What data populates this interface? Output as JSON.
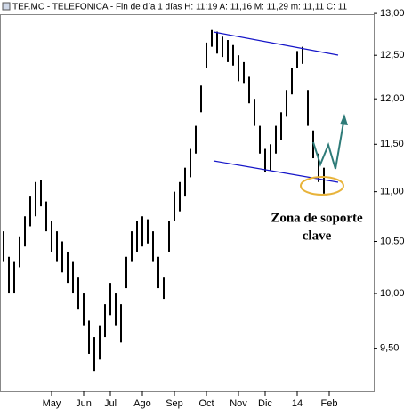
{
  "chart_data": {
    "type": "ohlc",
    "title": "TEF.MC - TELEFONICA - Fin de día 1 días H: 11:19 A: 11,16 M: 11,29 m: 11,11 C: 11",
    "log_scale": true,
    "color": "#000000",
    "xlim": [
      0,
      70
    ],
    "ylim": [
      9.14,
      13.11
    ],
    "yticks": [
      {
        "value": 9.5,
        "label": "9,50"
      },
      {
        "value": 10,
        "label": "10,00"
      },
      {
        "value": 10.5,
        "label": "10,50"
      },
      {
        "value": 11,
        "label": "11,00"
      },
      {
        "value": 11.5,
        "label": "11,50"
      },
      {
        "value": 12,
        "label": "12,00"
      },
      {
        "value": 12.5,
        "label": "12,50"
      },
      {
        "value": 13,
        "label": "13,00"
      }
    ],
    "xticks": [
      {
        "value": 9,
        "label": "May"
      },
      {
        "value": 15,
        "label": "Jun"
      },
      {
        "value": 20,
        "label": "Jul"
      },
      {
        "value": 26,
        "label": "Ago"
      },
      {
        "value": 32,
        "label": "Sep"
      },
      {
        "value": 38,
        "label": "Oct"
      },
      {
        "value": 44,
        "label": "Nov"
      },
      {
        "value": 49,
        "label": "Dic"
      },
      {
        "value": 55,
        "label": "14"
      },
      {
        "value": 61,
        "label": "Feb"
      }
    ],
    "high": [
      10.6,
      10.35,
      10.3,
      10.55,
      10.75,
      10.95,
      11.1,
      11.12,
      10.9,
      10.7,
      10.6,
      10.5,
      10.4,
      10.3,
      10.15,
      10.0,
      9.75,
      9.6,
      9.7,
      9.9,
      10.1,
      10.0,
      9.9,
      10.35,
      10.6,
      10.7,
      10.75,
      10.72,
      10.6,
      10.35,
      10.15,
      10.7,
      11.0,
      11.1,
      11.25,
      11.45,
      11.7,
      12.15,
      12.65,
      12.8,
      12.78,
      12.72,
      12.68,
      12.62,
      12.5,
      12.42,
      12.25,
      12.0,
      11.7,
      11.45,
      11.5,
      11.7,
      11.85,
      12.1,
      12.35,
      12.55,
      12.6,
      12.1,
      11.65,
      11.4,
      11.25
    ],
    "low": [
      10.3,
      10.0,
      10.0,
      10.25,
      10.45,
      10.65,
      10.75,
      10.85,
      10.6,
      10.4,
      10.3,
      10.2,
      10.1,
      10.0,
      9.85,
      9.7,
      9.45,
      9.3,
      9.4,
      9.6,
      9.8,
      9.7,
      9.55,
      10.05,
      10.3,
      10.4,
      10.45,
      10.48,
      10.3,
      10.05,
      9.95,
      10.4,
      10.7,
      10.8,
      10.95,
      11.15,
      11.4,
      11.85,
      12.35,
      12.6,
      12.52,
      12.48,
      12.42,
      12.38,
      12.2,
      12.18,
      11.95,
      11.7,
      11.4,
      11.2,
      11.22,
      11.4,
      11.55,
      11.8,
      12.05,
      12.35,
      12.4,
      11.7,
      11.35,
      11.1,
      10.98
    ],
    "annotations": [
      "Zona de soporte",
      "clave"
    ]
  }
}
